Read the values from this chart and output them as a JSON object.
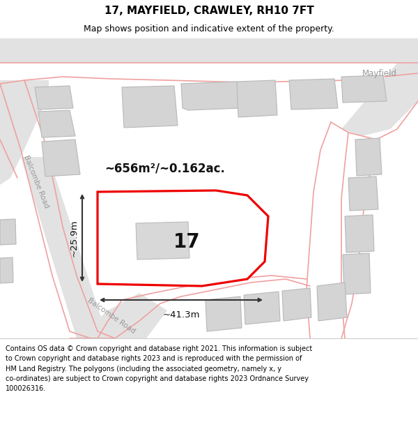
{
  "title": "17, MAYFIELD, CRAWLEY, RH10 7FT",
  "subtitle": "Map shows position and indicative extent of the property.",
  "footer": "Contains OS data © Crown copyright and database right 2021. This information is subject\nto Crown copyright and database rights 2023 and is reproduced with the permission of\nHM Land Registry. The polygons (including the associated geometry, namely x, y\nco-ordinates) are subject to Crown copyright and database rights 2023 Ordnance Survey\n100026316.",
  "map_bg": "#f7f7f7",
  "road_fill": "#e2e2e2",
  "road_edge": "#c8c8c8",
  "road_line": "#f0a0a0",
  "building_fill": "#d4d4d4",
  "building_edge": "#b8b8b8",
  "highlight_color": "#ee0000",
  "highlight_fill": "#ffffff",
  "dim_color": "#333333",
  "text_color": "#111111",
  "label_color": "#999999",
  "area_label": "~656m²/~0.162ac.",
  "width_label": "~41.3m",
  "height_label": "~25.9m",
  "property_number": "17",
  "road_label_1": "Balcombe Road",
  "road_label_2": "Balcombe Road",
  "street_label": "Mayfield",
  "fig_width": 6.0,
  "fig_height": 6.25,
  "title_fontsize": 11,
  "subtitle_fontsize": 9,
  "footer_fontsize": 7.0
}
